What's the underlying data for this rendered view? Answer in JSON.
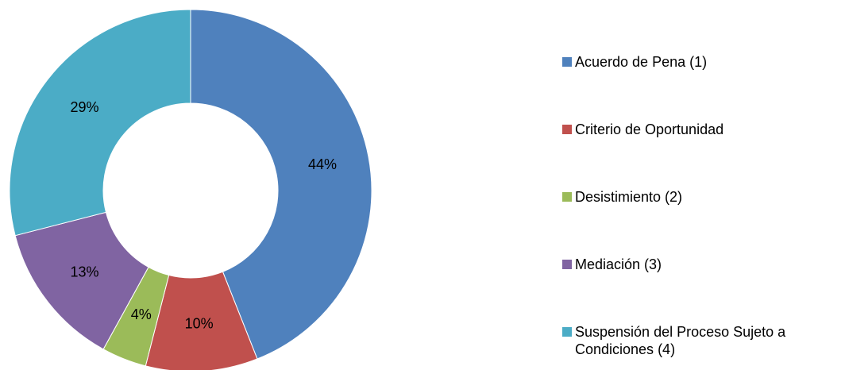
{
  "chart_data": {
    "type": "donut",
    "categories": [
      "Acuerdo de Pena (1)",
      "Criterio de Oportunidad",
      "Desistimiento (2)",
      "Mediación  (3)",
      "Suspensión del Proceso Sujeto a Condiciones (4)"
    ],
    "values": [
      44,
      10,
      4,
      13,
      29
    ],
    "value_labels": [
      "44%",
      "10%",
      "4%",
      "13%",
      "29%"
    ],
    "colors": [
      "#4f81bd",
      "#c0504d",
      "#9bbb59",
      "#8064a2",
      "#4bacc6"
    ],
    "legend": "right"
  }
}
